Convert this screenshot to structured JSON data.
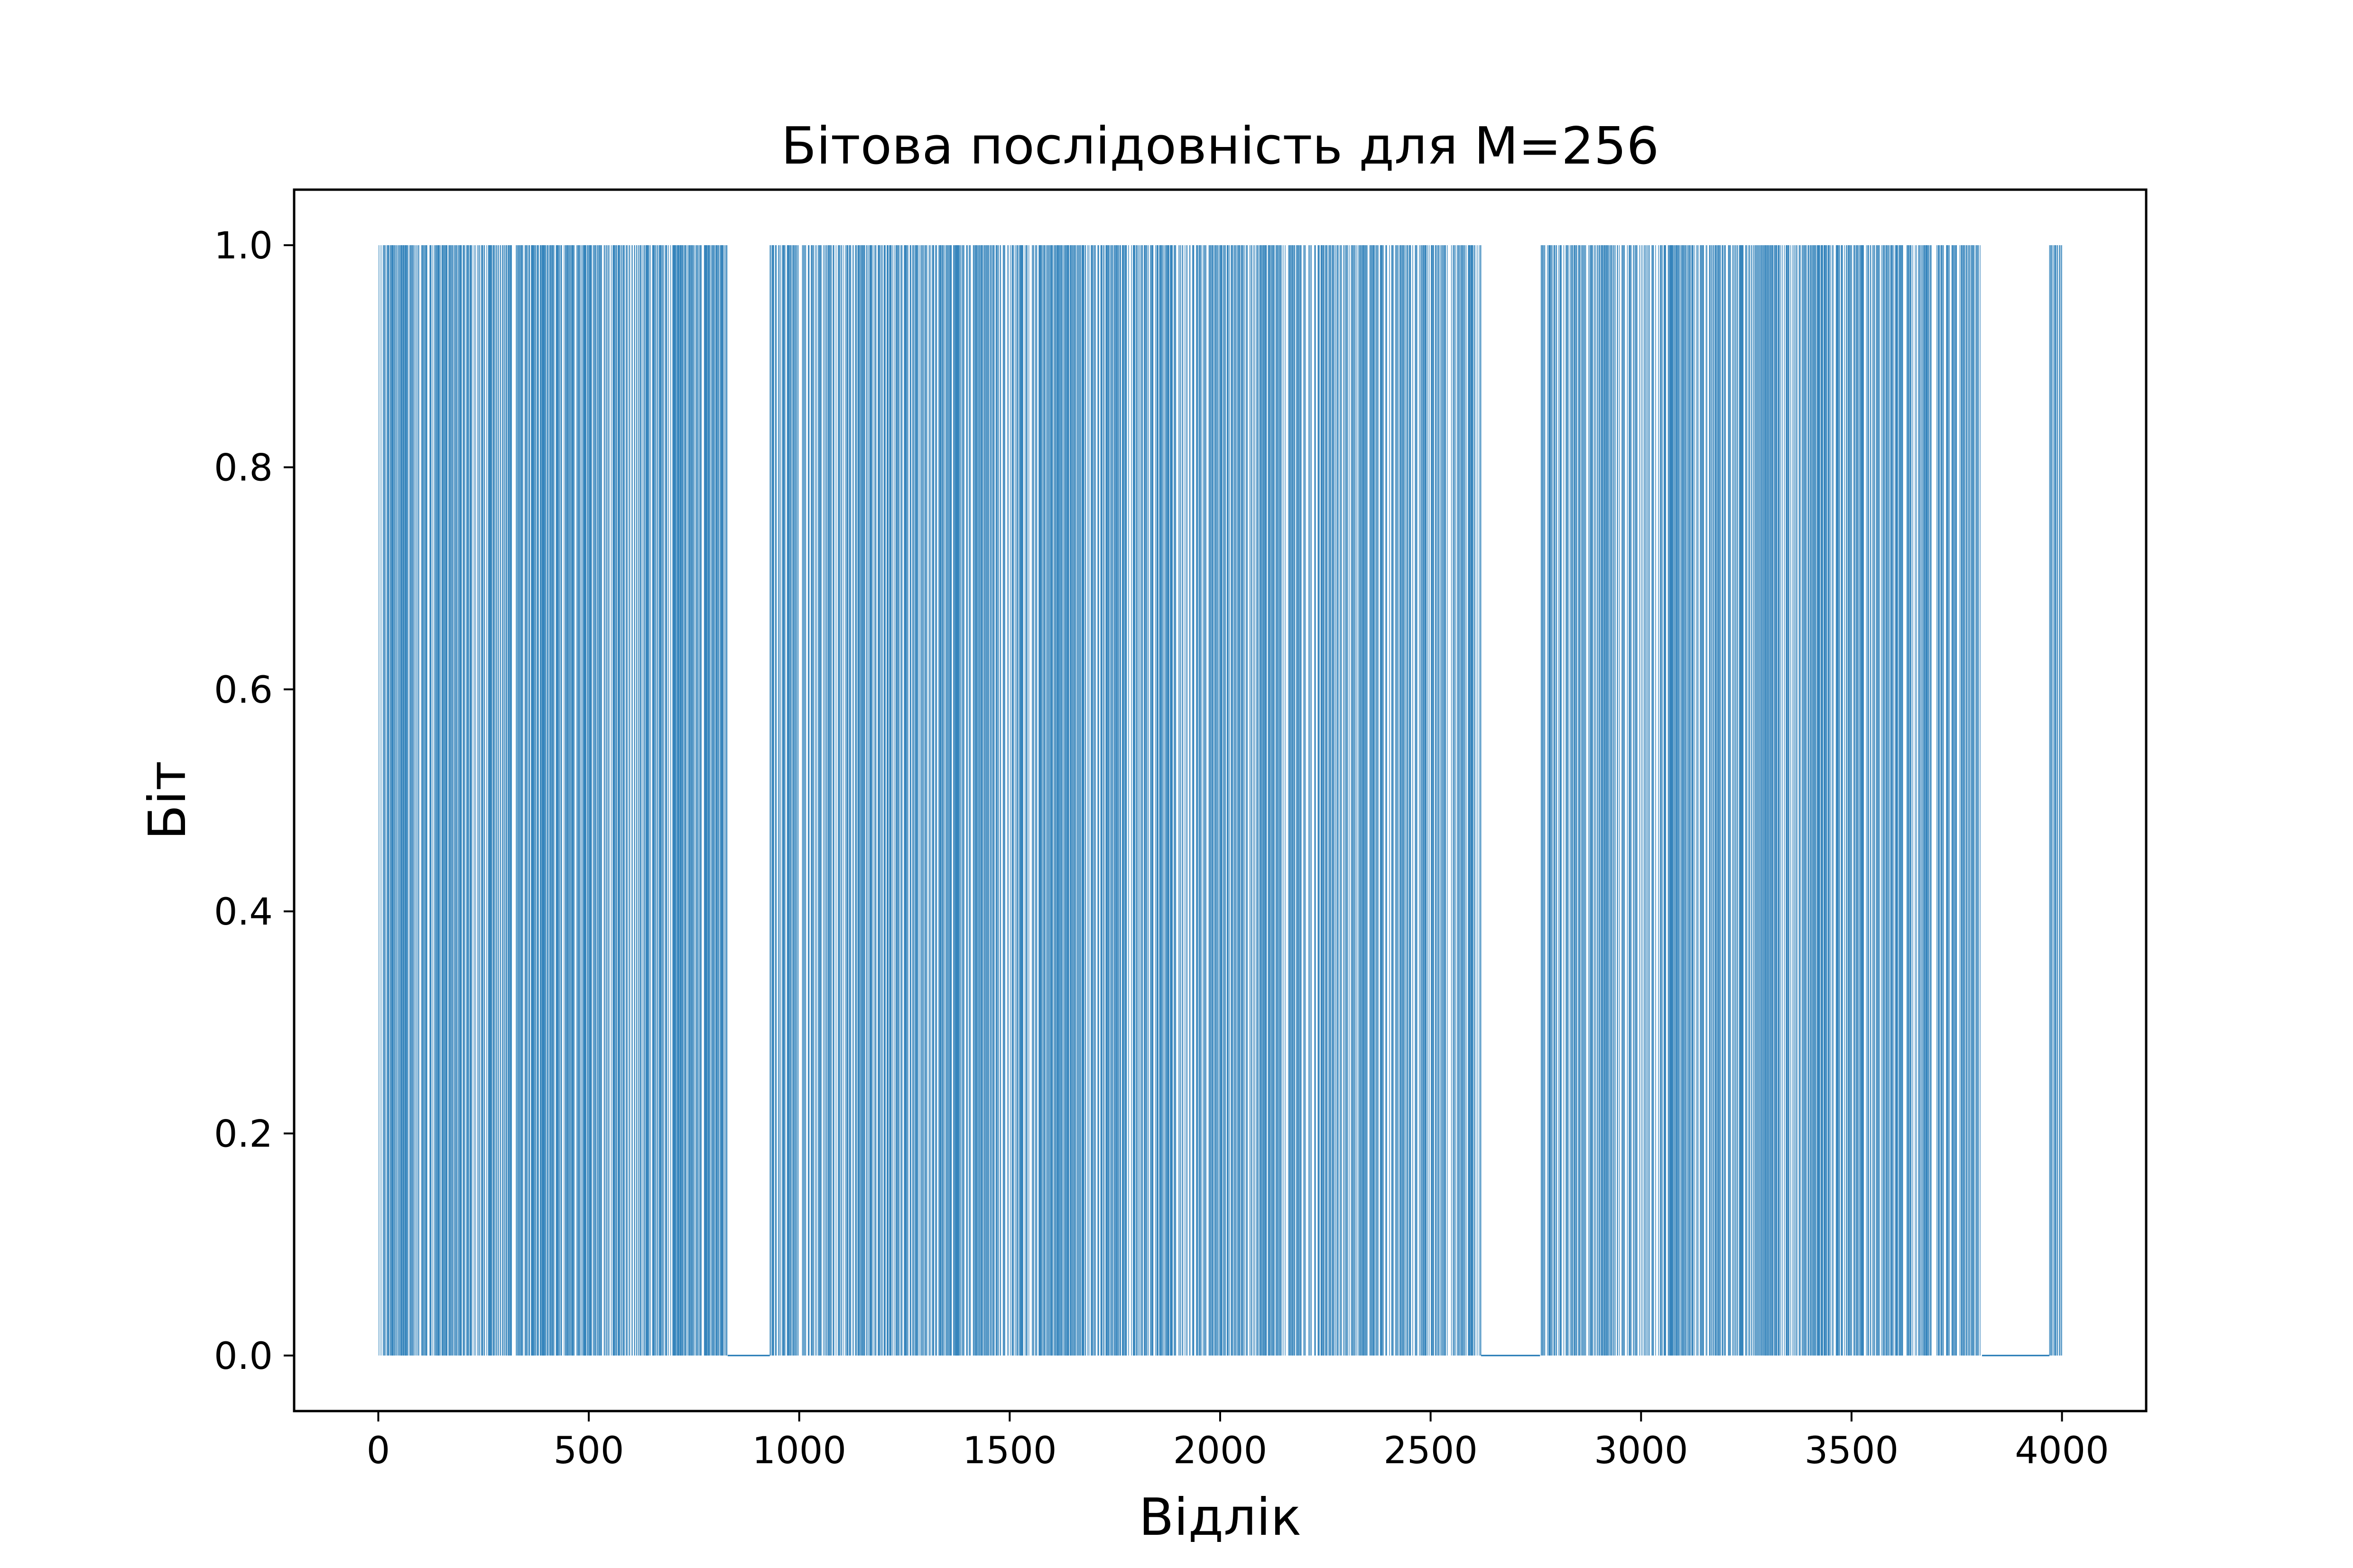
{
  "chart_data": {
    "type": "bar",
    "title": "Бітова послідовність для M=256",
    "xlabel": "Відлік",
    "ylabel": "Біт",
    "xlim": [
      -200,
      4200
    ],
    "ylim": [
      -0.05,
      1.05
    ],
    "xticks": [
      0,
      500,
      1000,
      1500,
      2000,
      2500,
      3000,
      3500,
      4000
    ],
    "yticks": [
      0.0,
      0.2,
      0.4,
      0.6,
      0.8,
      1.0
    ],
    "xtick_labels": [
      "0",
      "500",
      "1000",
      "1500",
      "2000",
      "2500",
      "3000",
      "3500",
      "4000"
    ],
    "ytick_labels": [
      "0.0",
      "0.2",
      "0.4",
      "0.6",
      "0.8",
      "1.0"
    ],
    "grid": false,
    "color": "#1f77b4",
    "series": [
      {
        "x_range": [
          0,
          4000
        ],
        "values_domain": [
          0,
          1
        ],
        "one_segments": [
          {
            "x": [
              0,
              830
            ],
            "density": 0.55
          },
          {
            "x": [
              930,
              2620
            ],
            "density": 0.5
          },
          {
            "x": [
              2760,
              3810
            ],
            "density": 0.5
          },
          {
            "x": [
              3970,
              4000
            ],
            "density": 0.5
          }
        ],
        "zero_gaps": [
          [
            830,
            930
          ],
          [
            2620,
            2760
          ],
          [
            3810,
            3970
          ]
        ]
      }
    ]
  }
}
